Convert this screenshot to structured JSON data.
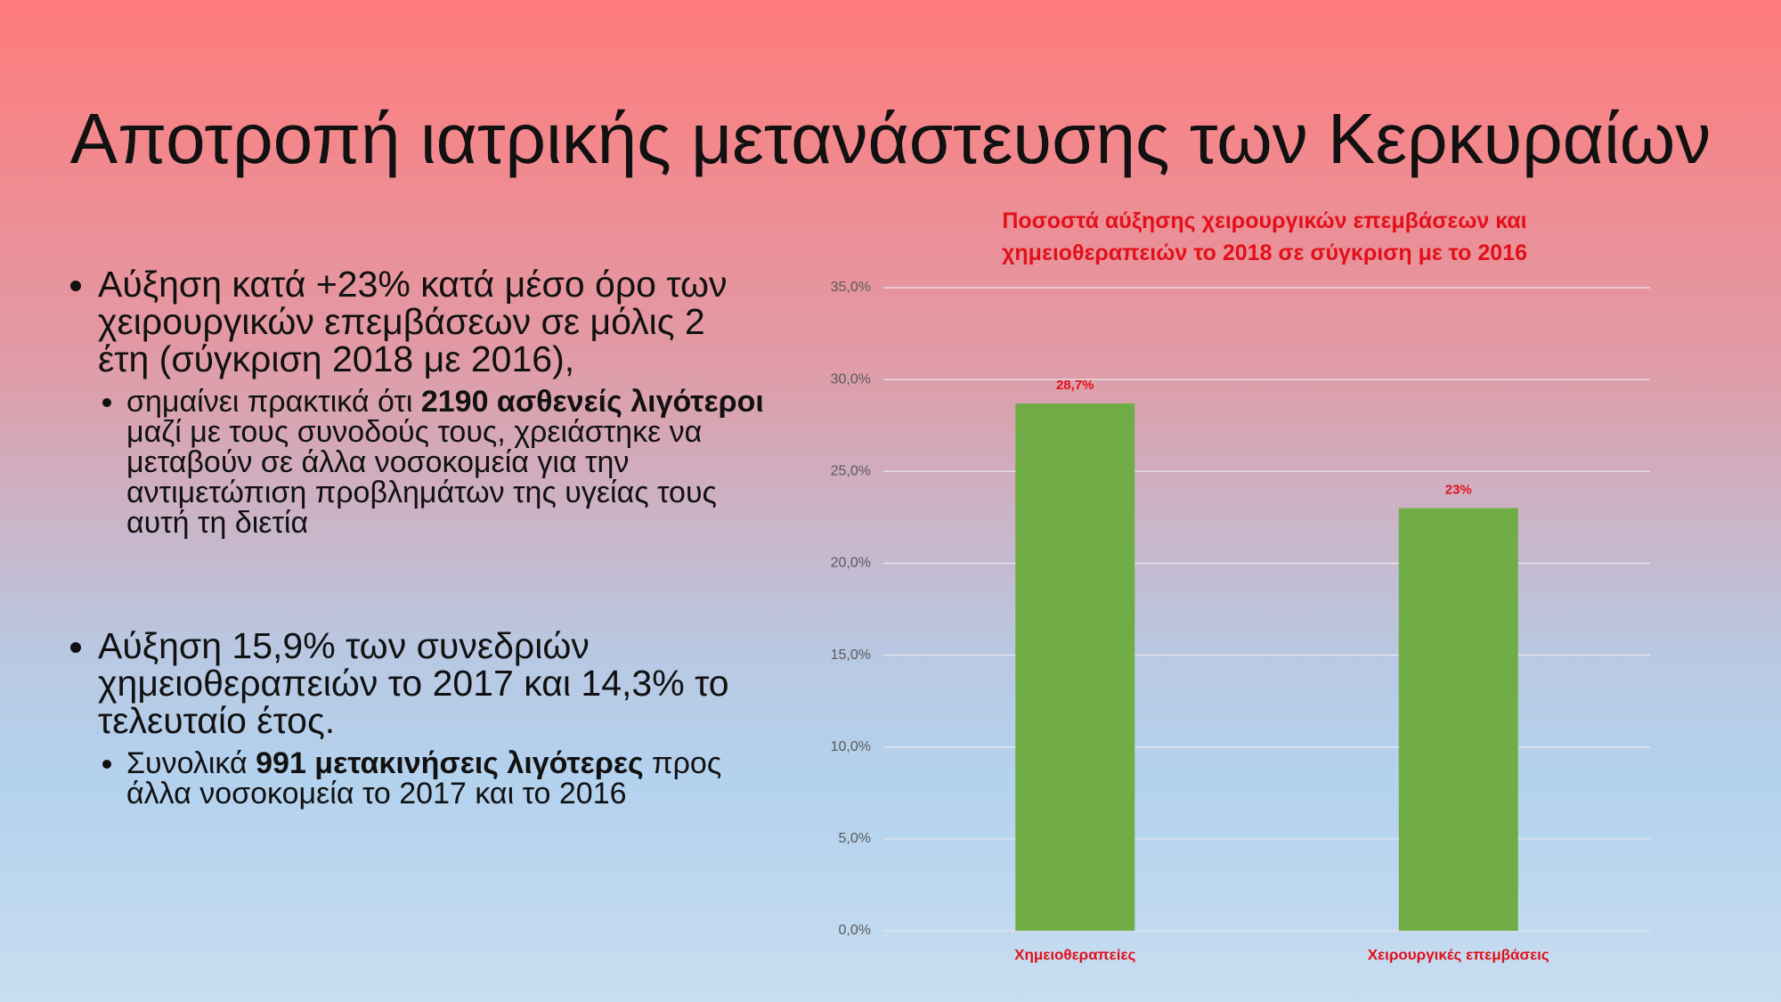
{
  "slide": {
    "title": "Αποτροπή ιατρικής μετανάστευσης των Κερκυραίων",
    "bullets": [
      {
        "runs": [
          {
            "text": "Αύξηση κατά +23% κατά μέσο όρο των χειρουργικών επεμβάσεων σε μόλις 2 έτη (σύγκριση 2018 με 2016),",
            "bold": false
          }
        ],
        "sub": [
          {
            "runs": [
              {
                "text": "σημαίνει πρακτικά ότι ",
                "bold": false
              },
              {
                "text": "2190 ασθενείς λιγότεροι",
                "bold": true
              },
              {
                "text": " μαζί με τους συνοδούς τους, χρειάστηκε να μεταβούν σε άλλα νοσοκομεία για την αντιμετώπιση προβλημάτων της υγείας τους αυτή τη διετία",
                "bold": false
              }
            ]
          }
        ]
      },
      {
        "runs": [
          {
            "text": "Αύξηση 15,9% των συνεδριών χημειοθεραπειών το 2017 και 14,3% το τελευταίο έτος.",
            "bold": false
          }
        ],
        "sub": [
          {
            "runs": [
              {
                "text": "Συνολικά ",
                "bold": false
              },
              {
                "text": "991 μετακινήσεις λιγότερες",
                "bold": true
              },
              {
                "text": " προς άλλα νοσοκομεία το 2017 και το 2016",
                "bold": false
              }
            ]
          }
        ]
      }
    ]
  },
  "chart_data": {
    "type": "bar",
    "title": "Ποσοστά αύξησης χειρουργικών επεμβάσεων και χημειοθεραπειών το 2018 σε σύγκριση με το 2016",
    "categories": [
      "Χημειοθεραπείες",
      "Χειρουργικές επεμβάσεις"
    ],
    "values": [
      28.7,
      23
    ],
    "value_labels": [
      "28,7%",
      "23%"
    ],
    "color": "#70ad47",
    "ylim": [
      0,
      35
    ],
    "yticks": [
      {
        "value": 0,
        "label": "0,0%"
      },
      {
        "value": 5,
        "label": "5,0%"
      },
      {
        "value": 10,
        "label": "10,0%"
      },
      {
        "value": 15,
        "label": "15,0%"
      },
      {
        "value": 20,
        "label": "20,0%"
      },
      {
        "value": 25,
        "label": "25,0%"
      },
      {
        "value": 30,
        "label": "30,0%"
      },
      {
        "value": 35,
        "label": "35,0%"
      }
    ],
    "grid": true
  }
}
